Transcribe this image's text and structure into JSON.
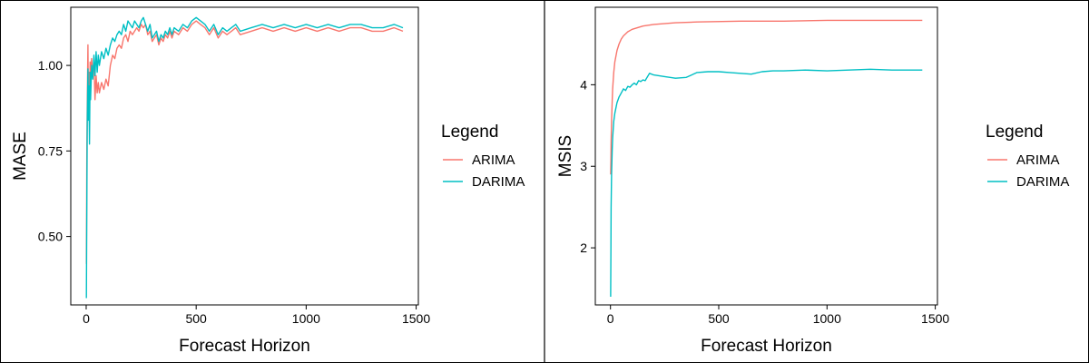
{
  "colors": {
    "ARIMA": "#F8766D",
    "DARIMA": "#00BFC4"
  },
  "chart_data": [
    {
      "type": "line",
      "title": "",
      "xlabel": "Forecast Horizon",
      "ylabel": "MASE",
      "xlim": [
        -70,
        1510
      ],
      "ylim": [
        0.3,
        1.17
      ],
      "xticks": [
        0,
        500,
        1000,
        1500
      ],
      "xtick_labels": [
        "0",
        "500",
        "1000",
        "1500"
      ],
      "yticks": [
        0.5,
        0.75,
        1.0
      ],
      "ytick_labels": [
        "0.50",
        "0.75",
        "1.00"
      ],
      "grid": false,
      "legend": {
        "title": "Legend",
        "position": "right",
        "entries": [
          "ARIMA",
          "DARIMA"
        ]
      },
      "series": [
        {
          "name": "ARIMA",
          "x": [
            1,
            3,
            5,
            8,
            10,
            12,
            15,
            18,
            20,
            25,
            30,
            35,
            40,
            45,
            50,
            55,
            60,
            70,
            80,
            90,
            100,
            110,
            120,
            130,
            140,
            150,
            160,
            170,
            180,
            190,
            200,
            210,
            220,
            230,
            240,
            250,
            260,
            270,
            280,
            290,
            300,
            310,
            320,
            330,
            340,
            350,
            360,
            370,
            380,
            390,
            400,
            420,
            440,
            460,
            480,
            500,
            520,
            540,
            560,
            580,
            600,
            620,
            640,
            660,
            680,
            700,
            750,
            800,
            850,
            900,
            950,
            1000,
            1050,
            1100,
            1150,
            1200,
            1250,
            1300,
            1350,
            1400,
            1440
          ],
          "y": [
            0.42,
            0.75,
            0.9,
            1.06,
            0.88,
            0.98,
            0.86,
            1.01,
            0.96,
            1.02,
            0.98,
            1.01,
            0.9,
            0.97,
            0.92,
            0.95,
            0.92,
            0.95,
            0.93,
            0.96,
            0.94,
            1.0,
            1.03,
            1.02,
            1.05,
            1.06,
            1.05,
            1.08,
            1.09,
            1.07,
            1.1,
            1.09,
            1.1,
            1.11,
            1.1,
            1.12,
            1.11,
            1.12,
            1.09,
            1.1,
            1.07,
            1.08,
            1.09,
            1.06,
            1.08,
            1.07,
            1.09,
            1.08,
            1.1,
            1.08,
            1.1,
            1.09,
            1.11,
            1.1,
            1.12,
            1.13,
            1.12,
            1.11,
            1.09,
            1.11,
            1.08,
            1.1,
            1.09,
            1.1,
            1.11,
            1.09,
            1.1,
            1.11,
            1.1,
            1.11,
            1.1,
            1.11,
            1.1,
            1.11,
            1.1,
            1.11,
            1.11,
            1.1,
            1.1,
            1.11,
            1.1
          ]
        },
        {
          "name": "DARIMA",
          "x": [
            1,
            3,
            5,
            8,
            10,
            12,
            15,
            18,
            20,
            25,
            30,
            35,
            40,
            45,
            50,
            55,
            60,
            70,
            80,
            90,
            100,
            110,
            120,
            130,
            140,
            150,
            160,
            170,
            180,
            190,
            200,
            210,
            220,
            230,
            240,
            250,
            260,
            270,
            280,
            290,
            300,
            310,
            320,
            330,
            340,
            350,
            360,
            370,
            380,
            390,
            400,
            420,
            440,
            460,
            480,
            500,
            520,
            540,
            560,
            580,
            600,
            620,
            640,
            660,
            680,
            700,
            750,
            800,
            850,
            900,
            950,
            1000,
            1050,
            1100,
            1150,
            1200,
            1250,
            1300,
            1350,
            1400,
            1440
          ],
          "y": [
            0.32,
            0.6,
            0.85,
            0.99,
            0.84,
            0.94,
            0.77,
            0.98,
            0.9,
            1.0,
            0.96,
            1.03,
            0.97,
            1.04,
            0.98,
            1.03,
            1.0,
            1.04,
            1.02,
            1.05,
            1.03,
            1.06,
            1.08,
            1.07,
            1.09,
            1.1,
            1.09,
            1.12,
            1.1,
            1.13,
            1.12,
            1.11,
            1.13,
            1.12,
            1.11,
            1.13,
            1.14,
            1.12,
            1.1,
            1.12,
            1.08,
            1.09,
            1.1,
            1.07,
            1.09,
            1.08,
            1.1,
            1.09,
            1.11,
            1.09,
            1.11,
            1.1,
            1.12,
            1.11,
            1.13,
            1.14,
            1.13,
            1.12,
            1.1,
            1.12,
            1.09,
            1.11,
            1.1,
            1.11,
            1.12,
            1.1,
            1.11,
            1.12,
            1.11,
            1.12,
            1.11,
            1.12,
            1.11,
            1.12,
            1.11,
            1.12,
            1.12,
            1.11,
            1.11,
            1.12,
            1.11
          ]
        }
      ]
    },
    {
      "type": "line",
      "title": "",
      "xlabel": "Forecast Horizon",
      "ylabel": "MSIS",
      "xlim": [
        -70,
        1510
      ],
      "ylim": [
        1.3,
        4.95
      ],
      "xticks": [
        0,
        500,
        1000,
        1500
      ],
      "xtick_labels": [
        "0",
        "500",
        "1000",
        "1500"
      ],
      "yticks": [
        2,
        3,
        4
      ],
      "ytick_labels": [
        "2",
        "3",
        "4"
      ],
      "grid": false,
      "legend": {
        "title": "Legend",
        "position": "right",
        "entries": [
          "ARIMA",
          "DARIMA"
        ]
      },
      "series": [
        {
          "name": "ARIMA",
          "x": [
            1,
            2,
            3,
            5,
            8,
            10,
            15,
            20,
            30,
            40,
            50,
            60,
            80,
            100,
            150,
            200,
            300,
            400,
            600,
            800,
            1000,
            1200,
            1440
          ],
          "y": [
            2.9,
            3.1,
            3.3,
            3.55,
            3.8,
            3.95,
            4.15,
            4.28,
            4.42,
            4.5,
            4.56,
            4.6,
            4.65,
            4.68,
            4.72,
            4.74,
            4.76,
            4.77,
            4.78,
            4.78,
            4.79,
            4.79,
            4.79
          ]
        },
        {
          "name": "DARIMA",
          "x": [
            1,
            2,
            3,
            5,
            8,
            10,
            15,
            20,
            30,
            40,
            50,
            60,
            70,
            80,
            90,
            100,
            110,
            120,
            130,
            140,
            150,
            160,
            180,
            200,
            250,
            300,
            350,
            400,
            450,
            500,
            550,
            600,
            650,
            700,
            750,
            800,
            900,
            1000,
            1100,
            1200,
            1300,
            1400,
            1440
          ],
          "y": [
            1.4,
            2.0,
            2.5,
            2.9,
            3.2,
            3.35,
            3.55,
            3.65,
            3.78,
            3.85,
            3.9,
            3.95,
            3.93,
            3.98,
            3.97,
            4.0,
            4.02,
            4.0,
            4.05,
            4.04,
            4.06,
            4.05,
            4.14,
            4.12,
            4.1,
            4.08,
            4.09,
            4.15,
            4.16,
            4.16,
            4.15,
            4.14,
            4.13,
            4.16,
            4.17,
            4.17,
            4.18,
            4.17,
            4.18,
            4.19,
            4.18,
            4.18,
            4.18
          ]
        }
      ]
    }
  ]
}
